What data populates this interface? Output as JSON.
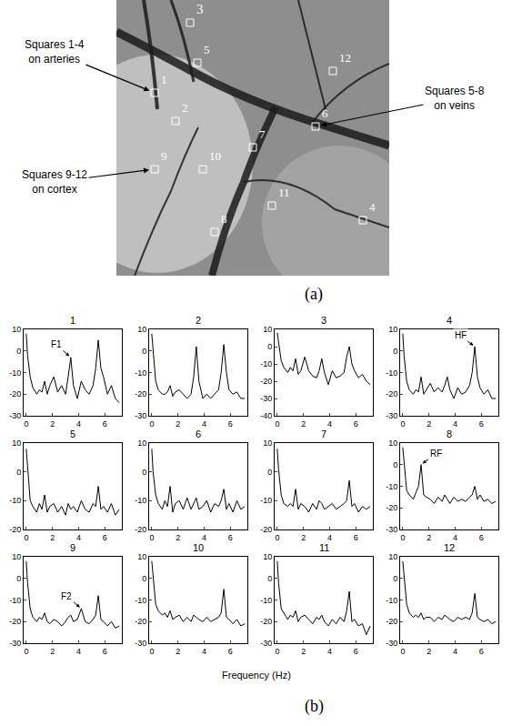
{
  "panel_labels": [
    "(a)",
    "(b)"
  ],
  "photo": {
    "squares": [
      "1",
      "2",
      "3",
      "4",
      "5",
      "6",
      "7",
      "8",
      "9",
      "10",
      "11",
      "12"
    ],
    "callouts": [
      {
        "lines": [
          "Squares 1-4",
          "on arteries"
        ],
        "square": "1"
      },
      {
        "lines": [
          "Squares 5-8",
          "on veins"
        ],
        "square": "6"
      },
      {
        "lines": [
          "Squares 9-12",
          "on cortex"
        ],
        "square": "9"
      }
    ]
  },
  "x_label": "Frequency (Hz)",
  "chart_data": [
    {
      "type": "line",
      "title": "1",
      "color": "#000000",
      "x": [
        0,
        0.1,
        0.3,
        0.5,
        0.8,
        1.0,
        1.2,
        1.4,
        1.6,
        1.8,
        2.1,
        2.4,
        2.7,
        3.0,
        3.2,
        3.4,
        3.6,
        3.9,
        4.2,
        4.5,
        4.8,
        5.1,
        5.3,
        5.5,
        5.7,
        5.9,
        6.2,
        6.5,
        6.8,
        7.1
      ],
      "values": [
        8,
        -2,
        -12,
        -17,
        -20,
        -18,
        -19,
        -14,
        -20,
        -16,
        -12,
        -19,
        -16,
        -20,
        -12,
        -3,
        -16,
        -22,
        -14,
        -18,
        -20,
        -16,
        -8,
        5,
        -8,
        -12,
        -20,
        -16,
        -22,
        -24
      ],
      "xlim": [
        -0.2,
        7.3
      ],
      "xticks": [
        0,
        2,
        4,
        6
      ],
      "ylim": [
        -30,
        10
      ],
      "yticks": [
        -30,
        -20,
        -10,
        0,
        10
      ],
      "annotations": [
        {
          "text": "F1",
          "x": 3.4,
          "y": -3
        }
      ]
    },
    {
      "type": "line",
      "title": "2",
      "color": "#000000",
      "x": [
        0,
        0.1,
        0.3,
        0.5,
        0.8,
        1.0,
        1.2,
        1.4,
        1.6,
        1.8,
        2.1,
        2.4,
        2.7,
        3.0,
        3.2,
        3.4,
        3.6,
        3.9,
        4.2,
        4.5,
        4.8,
        5.1,
        5.3,
        5.5,
        5.7,
        5.9,
        6.2,
        6.5,
        6.8,
        7.1
      ],
      "values": [
        8,
        0,
        -14,
        -18,
        -20,
        -20,
        -19,
        -16,
        -21,
        -19,
        -18,
        -20,
        -22,
        -20,
        -12,
        2,
        -14,
        -22,
        -20,
        -22,
        -20,
        -18,
        -10,
        3,
        -10,
        -18,
        -20,
        -19,
        -22,
        -22
      ],
      "xlim": [
        -0.2,
        7.3
      ],
      "xticks": [
        0,
        2,
        4,
        6
      ],
      "ylim": [
        -30,
        10
      ],
      "yticks": [
        -30,
        -20,
        -10,
        0,
        10
      ]
    },
    {
      "type": "line",
      "title": "3",
      "color": "#000000",
      "x": [
        0,
        0.1,
        0.3,
        0.5,
        0.8,
        1.0,
        1.2,
        1.4,
        1.6,
        1.8,
        2.1,
        2.4,
        2.7,
        3.0,
        3.2,
        3.4,
        3.6,
        3.9,
        4.2,
        4.5,
        4.8,
        5.1,
        5.3,
        5.5,
        5.7,
        5.9,
        6.2,
        6.5,
        6.8,
        7.1
      ],
      "values": [
        8,
        2,
        -8,
        -12,
        -15,
        -12,
        -14,
        -7,
        -16,
        -14,
        -6,
        -14,
        -17,
        -18,
        -14,
        -7,
        -15,
        -22,
        -14,
        -18,
        -17,
        -15,
        -6,
        0,
        -10,
        -14,
        -18,
        -16,
        -20,
        -22
      ],
      "xlim": [
        -0.2,
        7.3
      ],
      "xticks": [
        0,
        2,
        4,
        6
      ],
      "ylim": [
        -40,
        10
      ],
      "yticks": [
        -40,
        -30,
        -20,
        -10,
        0,
        10
      ]
    },
    {
      "type": "line",
      "title": "4",
      "color": "#000000",
      "x": [
        0,
        0.1,
        0.3,
        0.5,
        0.8,
        1.0,
        1.2,
        1.4,
        1.6,
        1.8,
        2.1,
        2.4,
        2.7,
        3.0,
        3.2,
        3.4,
        3.6,
        3.9,
        4.2,
        4.5,
        4.8,
        5.1,
        5.3,
        5.5,
        5.7,
        5.9,
        6.2,
        6.5,
        6.8,
        7.1
      ],
      "values": [
        8,
        -2,
        -14,
        -18,
        -20,
        -18,
        -19,
        -12,
        -20,
        -18,
        -15,
        -19,
        -17,
        -19,
        -16,
        -12,
        -18,
        -22,
        -17,
        -20,
        -19,
        -16,
        -10,
        2,
        -12,
        -17,
        -20,
        -18,
        -22,
        -22
      ],
      "xlim": [
        -0.2,
        7.3
      ],
      "xticks": [
        0,
        2,
        4,
        6
      ],
      "ylim": [
        -30,
        10
      ],
      "yticks": [
        -30,
        -20,
        -10,
        0,
        10
      ],
      "annotations": [
        {
          "text": "HF",
          "x": 5.5,
          "y": 2
        }
      ]
    },
    {
      "type": "line",
      "title": "5",
      "color": "#000000",
      "x": [
        0,
        0.1,
        0.3,
        0.5,
        0.8,
        1.0,
        1.2,
        1.4,
        1.6,
        1.8,
        2.1,
        2.4,
        2.7,
        3.0,
        3.2,
        3.4,
        3.6,
        3.9,
        4.2,
        4.5,
        4.8,
        5.1,
        5.3,
        5.5,
        5.7,
        5.9,
        6.2,
        6.5,
        6.8,
        7.1
      ],
      "values": [
        8,
        2,
        -10,
        -12,
        -14,
        -11,
        -13,
        -8,
        -14,
        -12,
        -11,
        -14,
        -12,
        -15,
        -11,
        -13,
        -12,
        -14,
        -10,
        -13,
        -14,
        -11,
        -12,
        -5,
        -13,
        -12,
        -14,
        -11,
        -15,
        -13
      ],
      "xlim": [
        -0.2,
        7.3
      ],
      "xticks": [
        0,
        2,
        4,
        6
      ],
      "ylim": [
        -20,
        10
      ],
      "yticks": [
        -20,
        -10,
        0,
        10
      ]
    },
    {
      "type": "line",
      "title": "6",
      "color": "#000000",
      "x": [
        0,
        0.1,
        0.3,
        0.5,
        0.8,
        1.0,
        1.2,
        1.4,
        1.6,
        1.8,
        2.1,
        2.4,
        2.7,
        3.0,
        3.2,
        3.4,
        3.6,
        3.9,
        4.2,
        4.5,
        4.8,
        5.1,
        5.3,
        5.5,
        5.7,
        5.9,
        6.2,
        6.5,
        6.8,
        7.1
      ],
      "values": [
        8,
        0,
        -8,
        -11,
        -13,
        -10,
        -12,
        -5,
        -14,
        -11,
        -10,
        -13,
        -9,
        -13,
        -11,
        -9,
        -13,
        -12,
        -10,
        -14,
        -11,
        -12,
        -10,
        -6,
        -13,
        -11,
        -14,
        -10,
        -13,
        -12
      ],
      "xlim": [
        -0.2,
        7.3
      ],
      "xticks": [
        0,
        2,
        4,
        6
      ],
      "ylim": [
        -20,
        10
      ],
      "yticks": [
        -20,
        -10,
        0,
        10
      ]
    },
    {
      "type": "line",
      "title": "7",
      "color": "#000000",
      "x": [
        0,
        0.1,
        0.3,
        0.5,
        0.8,
        1.0,
        1.2,
        1.4,
        1.6,
        1.8,
        2.1,
        2.4,
        2.7,
        3.0,
        3.2,
        3.4,
        3.6,
        3.9,
        4.2,
        4.5,
        4.8,
        5.1,
        5.3,
        5.5,
        5.7,
        5.9,
        6.2,
        6.5,
        6.8,
        7.1
      ],
      "values": [
        8,
        1,
        -8,
        -11,
        -12,
        -11,
        -12,
        -6,
        -13,
        -11,
        -12,
        -14,
        -11,
        -13,
        -10,
        -11,
        -13,
        -12,
        -11,
        -13,
        -12,
        -11,
        -10,
        -3,
        -12,
        -11,
        -14,
        -12,
        -13,
        -12
      ],
      "xlim": [
        -0.2,
        7.3
      ],
      "xticks": [
        0,
        2,
        4,
        6
      ],
      "ylim": [
        -20,
        10
      ],
      "yticks": [
        -20,
        -10,
        0,
        10
      ]
    },
    {
      "type": "line",
      "title": "8",
      "color": "#000000",
      "x": [
        0,
        0.1,
        0.3,
        0.5,
        0.8,
        1.0,
        1.2,
        1.4,
        1.6,
        1.8,
        2.1,
        2.4,
        2.7,
        3.0,
        3.2,
        3.4,
        3.6,
        3.9,
        4.2,
        4.5,
        4.8,
        5.1,
        5.3,
        5.5,
        5.7,
        5.9,
        6.2,
        6.5,
        6.8,
        7.1
      ],
      "values": [
        8,
        0,
        -12,
        -14,
        -16,
        -13,
        -10,
        0,
        -14,
        -15,
        -16,
        -18,
        -15,
        -17,
        -14,
        -16,
        -18,
        -15,
        -17,
        -16,
        -17,
        -15,
        -14,
        -10,
        -16,
        -14,
        -17,
        -16,
        -18,
        -17
      ],
      "xlim": [
        -0.2,
        7.3
      ],
      "xticks": [
        0,
        2,
        4,
        6
      ],
      "ylim": [
        -30,
        10
      ],
      "yticks": [
        -30,
        -20,
        -10,
        0,
        10
      ],
      "annotations": [
        {
          "text": "RF",
          "x": 1.4,
          "y": 0
        }
      ]
    },
    {
      "type": "line",
      "title": "9",
      "color": "#000000",
      "x": [
        0,
        0.1,
        0.3,
        0.5,
        0.8,
        1.0,
        1.2,
        1.4,
        1.6,
        1.8,
        2.1,
        2.4,
        2.7,
        3.0,
        3.2,
        3.4,
        3.6,
        3.9,
        4.2,
        4.5,
        4.8,
        5.1,
        5.3,
        5.5,
        5.7,
        5.9,
        6.2,
        6.5,
        6.8,
        7.1
      ],
      "values": [
        8,
        -2,
        -14,
        -18,
        -20,
        -18,
        -19,
        -16,
        -20,
        -21,
        -19,
        -20,
        -22,
        -20,
        -18,
        -17,
        -20,
        -19,
        -14,
        -20,
        -21,
        -19,
        -17,
        -8,
        -19,
        -20,
        -22,
        -20,
        -23,
        -22
      ],
      "xlim": [
        -0.2,
        7.3
      ],
      "xticks": [
        0,
        2,
        4,
        6
      ],
      "ylim": [
        -30,
        10
      ],
      "yticks": [
        -30,
        -20,
        -10,
        0,
        10
      ],
      "annotations": [
        {
          "text": "F2",
          "x": 4.2,
          "y": -14
        }
      ]
    },
    {
      "type": "line",
      "title": "10",
      "color": "#000000",
      "x": [
        0,
        0.1,
        0.3,
        0.5,
        0.8,
        1.0,
        1.2,
        1.4,
        1.6,
        1.8,
        2.1,
        2.4,
        2.7,
        3.0,
        3.2,
        3.4,
        3.6,
        3.9,
        4.2,
        4.5,
        4.8,
        5.1,
        5.3,
        5.5,
        5.7,
        5.9,
        6.2,
        6.5,
        6.8,
        7.1
      ],
      "values": [
        8,
        0,
        -12,
        -15,
        -17,
        -16,
        -18,
        -15,
        -19,
        -18,
        -17,
        -20,
        -18,
        -20,
        -17,
        -18,
        -19,
        -20,
        -18,
        -20,
        -19,
        -18,
        -16,
        -5,
        -18,
        -19,
        -21,
        -19,
        -22,
        -21
      ],
      "xlim": [
        -0.2,
        7.3
      ],
      "xticks": [
        0,
        2,
        4,
        6
      ],
      "ylim": [
        -30,
        10
      ],
      "yticks": [
        -30,
        -20,
        -10,
        0,
        10
      ]
    },
    {
      "type": "line",
      "title": "11",
      "color": "#000000",
      "x": [
        0,
        0.1,
        0.3,
        0.5,
        0.8,
        1.0,
        1.2,
        1.4,
        1.6,
        1.8,
        2.1,
        2.4,
        2.7,
        3.0,
        3.2,
        3.4,
        3.6,
        3.9,
        4.2,
        4.5,
        4.8,
        5.1,
        5.3,
        5.5,
        5.7,
        5.9,
        6.2,
        6.5,
        6.8,
        7.1
      ],
      "values": [
        8,
        -2,
        -14,
        -16,
        -19,
        -17,
        -18,
        -15,
        -20,
        -18,
        -17,
        -19,
        -21,
        -18,
        -19,
        -17,
        -20,
        -22,
        -19,
        -21,
        -18,
        -20,
        -15,
        -6,
        -20,
        -19,
        -22,
        -21,
        -26,
        -22
      ],
      "xlim": [
        -0.2,
        7.3
      ],
      "xticks": [
        0,
        2,
        4,
        6
      ],
      "ylim": [
        -30,
        10
      ],
      "yticks": [
        -30,
        -20,
        -10,
        0,
        10
      ]
    },
    {
      "type": "line",
      "title": "12",
      "color": "#000000",
      "x": [
        0,
        0.1,
        0.3,
        0.5,
        0.8,
        1.0,
        1.2,
        1.4,
        1.6,
        1.8,
        2.1,
        2.4,
        2.7,
        3.0,
        3.2,
        3.4,
        3.6,
        3.9,
        4.2,
        4.5,
        4.8,
        5.1,
        5.3,
        5.5,
        5.7,
        5.9,
        6.2,
        6.5,
        6.8,
        7.1
      ],
      "values": [
        8,
        0,
        -12,
        -16,
        -18,
        -17,
        -18,
        -16,
        -19,
        -18,
        -18,
        -20,
        -18,
        -19,
        -17,
        -18,
        -19,
        -20,
        -18,
        -19,
        -18,
        -19,
        -16,
        -7,
        -18,
        -19,
        -20,
        -19,
        -21,
        -20
      ],
      "xlim": [
        -0.2,
        7.3
      ],
      "xticks": [
        0,
        2,
        4,
        6
      ],
      "ylim": [
        -30,
        10
      ],
      "yticks": [
        -30,
        -20,
        -10,
        0,
        10
      ]
    }
  ]
}
